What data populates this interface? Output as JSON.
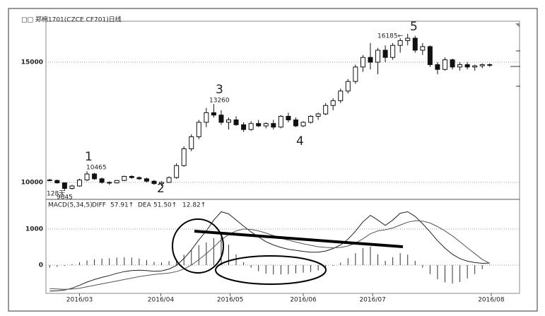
{
  "chart_data": [
    {
      "type": "candlestick",
      "title": "□□ 郑棉1701(CZCE CF701)日线",
      "xlim": [
        0,
        63.5
      ],
      "ylim": [
        9294,
        16706
      ],
      "yticks": [
        10000,
        15000
      ],
      "grid": true,
      "up_color": "#ffffff",
      "down_color": "#111111",
      "edge_color": "#111111",
      "candles": [
        [
          10100,
          10150,
          10050,
          10080
        ],
        [
          10080,
          10120,
          9950,
          9980
        ],
        [
          9980,
          10000,
          9645,
          9750
        ],
        [
          9750,
          9900,
          9700,
          9850
        ],
        [
          9850,
          10150,
          9820,
          10100
        ],
        [
          10100,
          10465,
          10050,
          10350
        ],
        [
          10350,
          10400,
          10100,
          10150
        ],
        [
          10150,
          10200,
          9950,
          10000
        ],
        [
          10000,
          10050,
          9900,
          9980
        ],
        [
          9980,
          10100,
          9950,
          10080
        ],
        [
          10080,
          10280,
          10050,
          10250
        ],
        [
          10250,
          10300,
          10150,
          10200
        ],
        [
          10200,
          10250,
          10100,
          10150
        ],
        [
          10150,
          10200,
          10000,
          10050
        ],
        [
          10050,
          10100,
          9900,
          9950
        ],
        [
          9950,
          10050,
          9850,
          10000
        ],
        [
          10000,
          10250,
          9980,
          10200
        ],
        [
          10200,
          10800,
          10150,
          10700
        ],
        [
          10700,
          11500,
          10650,
          11400
        ],
        [
          11400,
          12000,
          11300,
          11900
        ],
        [
          11900,
          12600,
          11800,
          12500
        ],
        [
          12500,
          13100,
          12300,
          12900
        ],
        [
          12900,
          13260,
          12700,
          12800
        ],
        [
          12800,
          13000,
          12400,
          12500
        ],
        [
          12500,
          12700,
          12200,
          12600
        ],
        [
          12600,
          12750,
          12350,
          12400
        ],
        [
          12400,
          12500,
          12100,
          12200
        ],
        [
          12200,
          12550,
          12150,
          12450
        ],
        [
          12450,
          12600,
          12300,
          12350
        ],
        [
          12350,
          12500,
          12250,
          12450
        ],
        [
          12450,
          12600,
          12200,
          12300
        ],
        [
          12300,
          12800,
          12250,
          12750
        ],
        [
          12750,
          12900,
          12500,
          12600
        ],
        [
          12600,
          12700,
          12300,
          12350
        ],
        [
          12350,
          12550,
          12300,
          12500
        ],
        [
          12500,
          12800,
          12450,
          12750
        ],
        [
          12750,
          12900,
          12600,
          12850
        ],
        [
          12850,
          13300,
          12800,
          13200
        ],
        [
          13200,
          13500,
          13000,
          13400
        ],
        [
          13400,
          13900,
          13300,
          13800
        ],
        [
          13800,
          14300,
          13700,
          14200
        ],
        [
          14200,
          14900,
          14100,
          14800
        ],
        [
          14800,
          15300,
          14600,
          15200
        ],
        [
          15200,
          15800,
          14700,
          15000
        ],
        [
          15000,
          15600,
          14500,
          15500
        ],
        [
          15500,
          15700,
          15000,
          15200
        ],
        [
          15200,
          15800,
          15100,
          15700
        ],
        [
          15700,
          16000,
          15400,
          15900
        ],
        [
          15900,
          16185,
          15700,
          16000
        ],
        [
          16000,
          16100,
          15400,
          15500
        ],
        [
          15500,
          15800,
          15300,
          15650
        ],
        [
          15650,
          15700,
          14800,
          14900
        ],
        [
          14900,
          15000,
          14500,
          14700
        ],
        [
          14700,
          15200,
          14650,
          15100
        ],
        [
          15100,
          15150,
          14700,
          14800
        ],
        [
          14800,
          15000,
          14650,
          14900
        ],
        [
          14900,
          15000,
          14700,
          14800
        ],
        [
          14800,
          14900,
          14650,
          14850
        ],
        [
          14850,
          14950,
          14750,
          14900
        ],
        [
          14900,
          14950,
          14800,
          14900
        ]
      ],
      "annotations": [
        "1",
        "10465",
        "2",
        "3",
        "13260",
        "4",
        "5",
        "16185←",
        "128天",
        "9645"
      ]
    },
    {
      "type": "macd",
      "indicator": "MACD(5,34,5)",
      "xlim": [
        0,
        63.5
      ],
      "ylim": [
        -784,
        1824
      ],
      "yticks": [
        0,
        1000
      ],
      "grid": true,
      "xticks": [
        {
          "value": 4.5,
          "label": "2016/03"
        },
        {
          "value": 15.4,
          "label": "2016/04"
        },
        {
          "value": 24.7,
          "label": "2016/05"
        },
        {
          "value": 34.5,
          "label": "2016/06"
        },
        {
          "value": 43.8,
          "label": "2016/07"
        },
        {
          "value": 59.7,
          "label": "2016/08"
        }
      ],
      "series": [
        {
          "name": "DIFF",
          "value_label": "57.91↑",
          "color": "#222222",
          "values": [
            -720,
            -710,
            -690,
            -640,
            -560,
            -470,
            -400,
            -340,
            -290,
            -230,
            -180,
            -150,
            -140,
            -150,
            -170,
            -160,
            -110,
            -10,
            180,
            420,
            700,
            950,
            1250,
            1480,
            1420,
            1250,
            1080,
            920,
            780,
            650,
            560,
            490,
            440,
            410,
            380,
            360,
            360,
            390,
            460,
            560,
            720,
            940,
            1200,
            1380,
            1250,
            1100,
            1250,
            1440,
            1480,
            1350,
            1150,
            920,
            680,
            470,
            300,
            180,
            110,
            70,
            50,
            57.91
          ]
        },
        {
          "name": "DEA",
          "value_label": "51.50↑",
          "color": "#555555",
          "values": [
            -650,
            -660,
            -670,
            -665,
            -640,
            -600,
            -560,
            -520,
            -480,
            -440,
            -400,
            -360,
            -320,
            -290,
            -260,
            -240,
            -220,
            -180,
            -110,
            0,
            150,
            320,
            500,
            700,
            850,
            950,
            1000,
            990,
            950,
            890,
            820,
            750,
            690,
            640,
            590,
            550,
            510,
            490,
            480,
            490,
            530,
            610,
            730,
            870,
            950,
            980,
            1030,
            1110,
            1190,
            1230,
            1220,
            1170,
            1070,
            950,
            810,
            650,
            480,
            320,
            160,
            51.5
          ]
        }
      ],
      "histogram": {
        "value_label": "12.82↑",
        "color": "#333333",
        "values": [
          -70,
          -50,
          -20,
          25,
          80,
          130,
          160,
          180,
          190,
          210,
          220,
          210,
          180,
          140,
          90,
          80,
          110,
          170,
          290,
          420,
          550,
          630,
          750,
          780,
          570,
          300,
          80,
          -70,
          -170,
          -240,
          -260,
          -260,
          -250,
          -230,
          -210,
          -190,
          -150,
          -100,
          -20,
          70,
          190,
          330,
          470,
          510,
          300,
          120,
          220,
          330,
          290,
          120,
          -70,
          -250,
          -390,
          -480,
          -510,
          -470,
          -370,
          -250,
          -110,
          12.82
        ]
      }
    }
  ]
}
